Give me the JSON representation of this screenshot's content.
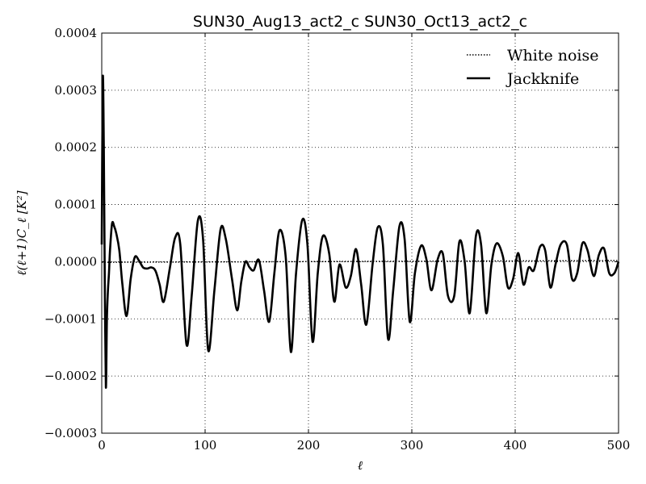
{
  "chart_data": {
    "type": "line",
    "title": "SUN30_Aug13_act2_c SUN30_Oct13_act2_c",
    "xlabel": "ℓ",
    "ylabel": "ℓ(ℓ+1)C_ℓ [K²]",
    "xlim": [
      0,
      500
    ],
    "ylim": [
      -0.0003,
      0.0004
    ],
    "x_ticks": [
      0,
      100,
      200,
      300,
      400,
      500
    ],
    "x_tick_labels": [
      "0",
      "100",
      "200",
      "300",
      "400",
      "500"
    ],
    "y_ticks": [
      -0.0003,
      -0.0002,
      -0.0001,
      0.0,
      0.0001,
      0.0002,
      0.0003,
      0.0004
    ],
    "y_tick_labels": [
      "−0.0003",
      "−0.0002",
      "−0.0001",
      "0.0000",
      "0.0001",
      "0.0002",
      "0.0003",
      "0.0004"
    ],
    "grid": true,
    "legend_position": "top-right",
    "series": [
      {
        "name": "White noise",
        "style": "dotted",
        "color": "#000000",
        "x": [
          0,
          500
        ],
        "y": [
          -1e-06,
          2e-06
        ]
      },
      {
        "name": "Jackknife",
        "style": "solid",
        "color": "#000000",
        "x": [
          0,
          1,
          2,
          3,
          4,
          5,
          6,
          7,
          8,
          10,
          12,
          14,
          17,
          20,
          24,
          28,
          32,
          36,
          40,
          44,
          48,
          52,
          56,
          60,
          66,
          71,
          76,
          82,
          87,
          93,
          98,
          103,
          109,
          115,
          120,
          126,
          131,
          135,
          139,
          143,
          147,
          152,
          157,
          162,
          167,
          172,
          178,
          183,
          188,
          194,
          199,
          204,
          209,
          214,
          220,
          225,
          230,
          236,
          241,
          246,
          251,
          256,
          262,
          267,
          272,
          277,
          282,
          288,
          293,
          298,
          303,
          309,
          314,
          319,
          325,
          330,
          335,
          341,
          346,
          351,
          356,
          362,
          367,
          372,
          377,
          382,
          388,
          393,
          398,
          403,
          408,
          413,
          418,
          424,
          429,
          434,
          439,
          444,
          450,
          455,
          460,
          465,
          470,
          476,
          481,
          486,
          491,
          496,
          500
        ],
        "y": [
          3e-05,
          0.00032,
          0.0002,
          -5e-05,
          -0.00022,
          -0.0001,
          -5e-05,
          -2e-05,
          2e-05,
          6.7e-05,
          6.2e-05,
          5e-05,
          2e-05,
          -4e-05,
          -9.5e-05,
          -3e-05,
          8e-06,
          2e-06,
          -1e-05,
          -1.2e-05,
          -1e-05,
          -1.6e-05,
          -4e-05,
          -7e-05,
          -1e-05,
          4.2e-05,
          3e-05,
          -0.000145,
          -6e-05,
          7.2e-05,
          4e-05,
          -0.000155,
          -5e-05,
          5.7e-05,
          4e-05,
          -3e-05,
          -8.5e-05,
          -3.5e-05,
          0.0,
          -1e-05,
          -1.5e-05,
          3e-06,
          -5e-05,
          -0.000105,
          -2e-05,
          5.5e-05,
          8e-06,
          -0.000158,
          -2e-05,
          7.3e-05,
          3e-05,
          -0.00014,
          -2e-05,
          4.5e-05,
          1.5e-05,
          -7e-05,
          -5e-06,
          -4.5e-05,
          -2.5e-05,
          2.2e-05,
          -4e-05,
          -0.00011,
          -5e-06,
          6e-05,
          3e-05,
          -0.000135,
          -5e-05,
          6.2e-05,
          4e-05,
          -0.000105,
          -2e-05,
          2.8e-05,
          5e-06,
          -5e-05,
          4e-06,
          1.4e-05,
          -6e-05,
          -6e-05,
          3.5e-05,
          2e-06,
          -9e-05,
          4.5e-05,
          3e-05,
          -9e-05,
          -5e-06,
          3.2e-05,
          1e-05,
          -4.5e-05,
          -3e-05,
          1.5e-05,
          -4e-05,
          -1e-05,
          -1.5e-05,
          2.6e-05,
          2e-05,
          -4.5e-05,
          -5e-06,
          3e-05,
          3e-05,
          -3e-05,
          -2e-05,
          3.2e-05,
          2e-05,
          -2.5e-05,
          1.2e-05,
          2.3e-05,
          -2e-05,
          -2e-05,
          0.0
        ]
      }
    ]
  }
}
